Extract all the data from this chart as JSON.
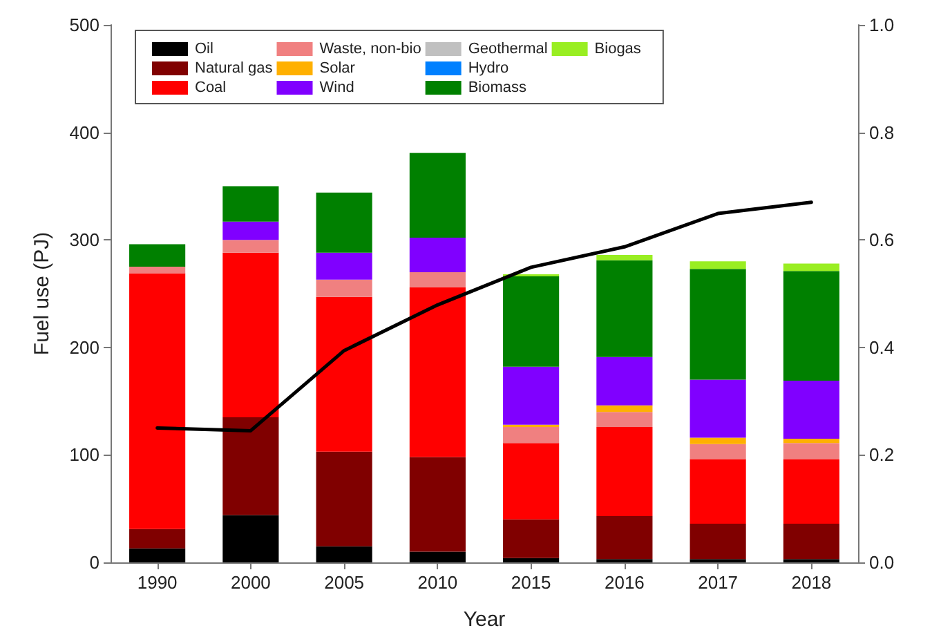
{
  "chart_data": {
    "type": "bar",
    "stacked": true,
    "xlabel": "Year",
    "ylabel": "Fuel use (PJ)",
    "categories": [
      "1990",
      "2000",
      "2005",
      "2010",
      "2015",
      "2016",
      "2017",
      "2018"
    ],
    "series": [
      {
        "name": "Oil",
        "color": "#000000",
        "values": [
          13,
          44,
          15,
          10,
          4,
          3,
          3,
          3
        ]
      },
      {
        "name": "Natural gas",
        "color": "#800000",
        "values": [
          18,
          91,
          88,
          88,
          36,
          40,
          33,
          33
        ]
      },
      {
        "name": "Coal",
        "color": "#ff0000",
        "values": [
          238,
          153,
          144,
          158,
          71,
          83,
          60,
          60
        ]
      },
      {
        "name": "Waste, non-bio",
        "color": "#f08080",
        "values": [
          6,
          12,
          16,
          14,
          15,
          14,
          14,
          15
        ]
      },
      {
        "name": "Solar",
        "color": "#ffb000",
        "values": [
          0,
          0,
          0,
          0,
          2,
          6,
          6,
          4
        ]
      },
      {
        "name": "Wind",
        "color": "#8000ff",
        "values": [
          0,
          17,
          25,
          32,
          54,
          45,
          54,
          54
        ]
      },
      {
        "name": "Geothermal",
        "color": "#c0c0c0",
        "values": [
          0,
          0,
          0,
          0,
          0,
          0,
          0,
          0
        ]
      },
      {
        "name": "Hydro",
        "color": "#0080ff",
        "values": [
          0,
          0,
          0,
          0,
          0,
          0,
          0,
          0
        ]
      },
      {
        "name": "Biomass",
        "color": "#008000",
        "values": [
          21,
          33,
          56,
          79,
          84,
          90,
          103,
          102
        ]
      },
      {
        "name": "Biogas",
        "color": "#99ee22",
        "values": [
          0,
          0,
          0,
          0,
          2,
          5,
          7,
          7
        ]
      },
      {
        "type": "line",
        "axis": "y2",
        "color": "#000000",
        "values": [
          0.25,
          0.245,
          0.394,
          0.479,
          0.549,
          0.587,
          0.649,
          0.67
        ]
      }
    ],
    "ylim": [
      0,
      500
    ],
    "yticks": [
      0,
      100,
      200,
      300,
      400,
      500
    ],
    "y2lim": [
      0,
      1
    ],
    "y2ticks": [
      {
        "value": 0,
        "label": "0.0"
      },
      {
        "value": 0.2,
        "label": "0.2"
      },
      {
        "value": 0.4,
        "label": "0.4"
      },
      {
        "value": 0.6,
        "label": "0.6"
      },
      {
        "value": 0.8,
        "label": "0.8"
      },
      {
        "value": 1,
        "label": "1.0"
      }
    ],
    "legend": "top left",
    "grid": false,
    "marker": "none",
    "line_style": "solid"
  }
}
